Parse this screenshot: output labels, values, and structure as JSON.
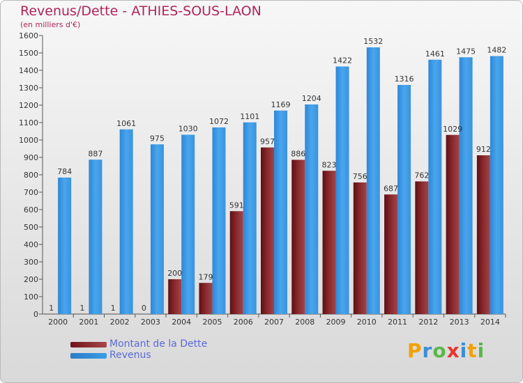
{
  "title": "Revenus/Dette - ATHIES-SOUS-LAON",
  "subtitle": "(en milliers d'€)",
  "legend": [
    {
      "label": "Montant de la Dette",
      "color": "#6e1418"
    },
    {
      "label": "Revenus",
      "color": "#3b9be6"
    }
  ],
  "logo": {
    "text": "Proxiti",
    "letters": [
      {
        "ch": "P",
        "color": "#f2a100"
      },
      {
        "ch": "r",
        "color": "#3a8fd6"
      },
      {
        "ch": "o",
        "color": "#58b848"
      },
      {
        "ch": "x",
        "color": "#e8362d"
      },
      {
        "ch": "i",
        "color": "#3a8fd6"
      },
      {
        "ch": "t",
        "color": "#f2a100"
      },
      {
        "ch": "i",
        "color": "#58b848"
      }
    ]
  },
  "chart_data": {
    "type": "bar",
    "title": "Revenus/Dette - ATHIES-SOUS-LAON",
    "subtitle": "(en milliers d'€)",
    "categories": [
      "2000",
      "2001",
      "2002",
      "2003",
      "2004",
      "2005",
      "2006",
      "2007",
      "2008",
      "2009",
      "2010",
      "2011",
      "2012",
      "2013",
      "2014"
    ],
    "series": [
      {
        "name": "Montant de la Dette",
        "color": "#7a1e22",
        "values": [
          1,
          1,
          1,
          0,
          200,
          179,
          591,
          957,
          886,
          823,
          756,
          687,
          762,
          1029,
          912
        ],
        "labels": [
          "1",
          "1",
          "1",
          "0",
          "200",
          "179",
          "591",
          "957",
          "886",
          "823",
          "756",
          "687",
          "762",
          "1029",
          "912"
        ]
      },
      {
        "name": "Revenus",
        "color": "#3b9be6",
        "values": [
          784,
          887,
          1061,
          975,
          1030,
          1072,
          1101,
          1169,
          1204,
          1422,
          1532,
          1316,
          1461,
          1475,
          1482
        ],
        "labels": [
          "784",
          "887",
          "1061",
          "975",
          "1030",
          "1072",
          "1101",
          "1169",
          "1204",
          "1422",
          "1532",
          "1316",
          "1461",
          "1475",
          "1482"
        ]
      }
    ],
    "yticks": [
      "0",
      "100",
      "200",
      "300",
      "400",
      "500",
      "600",
      "700",
      "800",
      "900",
      "1000",
      "1100",
      "1200",
      "1300",
      "1400",
      "1500",
      "1600"
    ],
    "ylim": [
      0,
      1600
    ],
    "grid": false,
    "legend_position": "bottom-left"
  }
}
